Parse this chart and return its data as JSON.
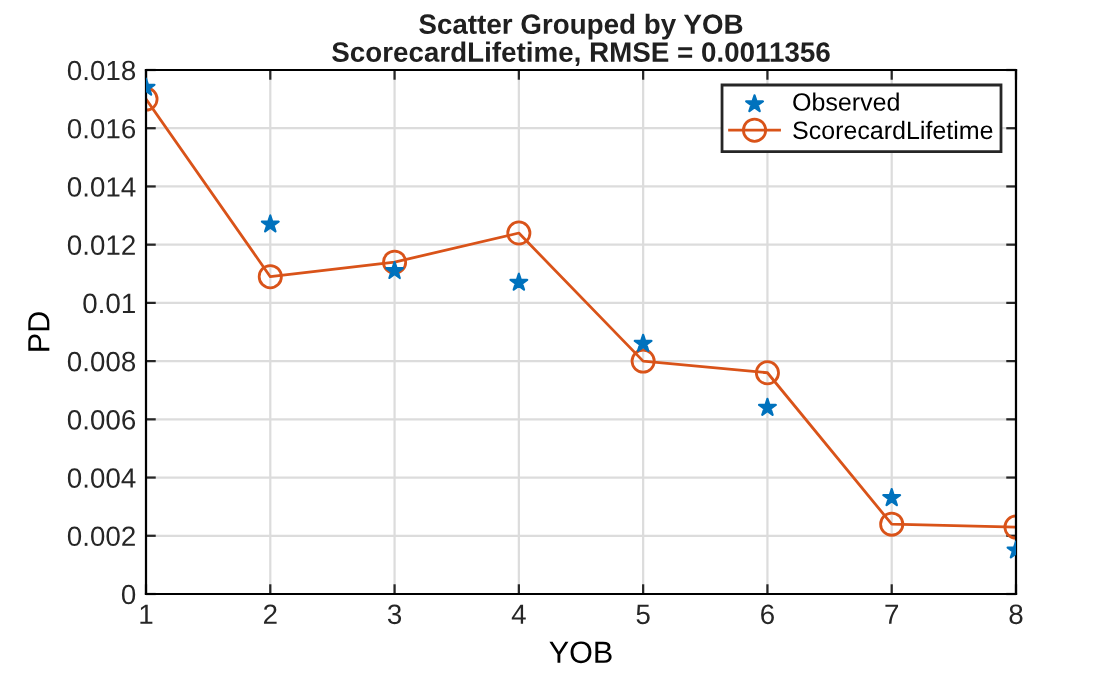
{
  "chart_data": {
    "type": "scatter",
    "title": "Scatter Grouped by YOB\nScorecardLifetime, RMSE = 0.0011356",
    "xlabel": "YOB",
    "ylabel": "PD",
    "x": [
      1,
      2,
      3,
      4,
      5,
      6,
      7,
      8
    ],
    "series": [
      {
        "name": "Observed",
        "marker": "star",
        "color": "#0072bd",
        "values": [
          0.0174,
          0.0127,
          0.0111,
          0.0107,
          0.0086,
          0.0064,
          0.0033,
          0.0015
        ]
      },
      {
        "name": "ScorecardLifetime",
        "type": "line",
        "marker": "circle",
        "color": "#d95319",
        "values": [
          0.017,
          0.0109,
          0.0114,
          0.0124,
          0.008,
          0.0076,
          0.0024,
          0.0023
        ]
      }
    ],
    "xlim": [
      1,
      8
    ],
    "xticks": [
      1,
      2,
      3,
      4,
      5,
      6,
      7,
      8
    ],
    "ylim": [
      0,
      0.018
    ],
    "yticks": [
      0,
      0.002,
      0.004,
      0.006,
      0.008,
      0.01,
      0.012,
      0.014,
      0.016,
      0.018
    ],
    "grid": true,
    "legend": "top right"
  }
}
